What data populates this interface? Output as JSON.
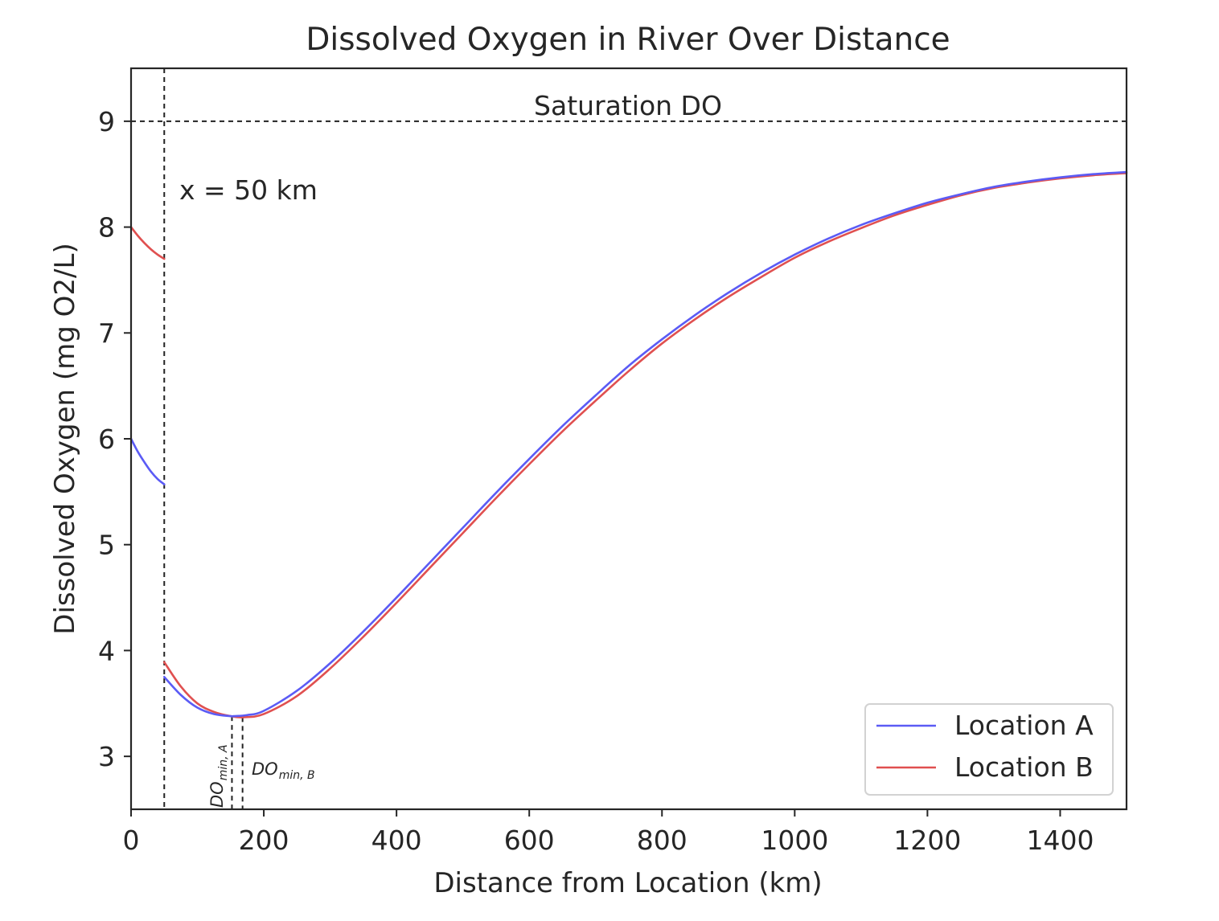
{
  "chart_data": {
    "type": "line",
    "title": "Dissolved Oxygen in River Over Distance",
    "xlabel": "Distance from Location (km)",
    "ylabel": "Dissolved Oxygen (mg O2/L)",
    "xlim": [
      0,
      1500
    ],
    "ylim": [
      2.5,
      9.5
    ],
    "xticks": [
      0,
      200,
      400,
      600,
      800,
      1000,
      1200,
      1400
    ],
    "yticks": [
      3,
      4,
      5,
      6,
      7,
      8,
      9
    ],
    "grid": false,
    "legend_position": "lower-right",
    "series": [
      {
        "name": "Location A",
        "color": "#5b5bf5",
        "segments": [
          {
            "x": [
              0,
              10,
              20,
              30,
              40,
              50
            ],
            "y": [
              6.0,
              5.88,
              5.78,
              5.69,
              5.62,
              5.57
            ]
          },
          {
            "x": [
              50,
              75,
              100,
              125,
              150,
              155,
              175,
              200,
              250,
              300,
              350,
              400,
              450,
              500,
              550,
              600,
              650,
              700,
              750,
              800,
              850,
              900,
              950,
              1000,
              1050,
              1100,
              1150,
              1200,
              1250,
              1300,
              1350,
              1400,
              1450,
              1500
            ],
            "y": [
              3.75,
              3.58,
              3.46,
              3.4,
              3.38,
              3.38,
              3.39,
              3.43,
              3.62,
              3.88,
              4.18,
              4.5,
              4.83,
              5.16,
              5.49,
              5.81,
              6.12,
              6.41,
              6.69,
              6.94,
              7.17,
              7.38,
              7.57,
              7.74,
              7.89,
              8.02,
              8.13,
              8.23,
              8.31,
              8.38,
              8.43,
              8.47,
              8.5,
              8.52
            ]
          }
        ]
      },
      {
        "name": "Location B",
        "color": "#e05050",
        "segments": [
          {
            "x": [
              0,
              10,
              20,
              30,
              40,
              50
            ],
            "y": [
              8.0,
              7.92,
              7.85,
              7.79,
              7.74,
              7.7
            ]
          },
          {
            "x": [
              50,
              75,
              100,
              125,
              150,
              170,
              200,
              250,
              300,
              350,
              400,
              450,
              500,
              550,
              600,
              650,
              700,
              750,
              800,
              850,
              900,
              950,
              1000,
              1050,
              1100,
              1150,
              1200,
              1250,
              1300,
              1350,
              1400,
              1450,
              1500
            ],
            "y": [
              3.89,
              3.66,
              3.5,
              3.42,
              3.38,
              3.37,
              3.4,
              3.57,
              3.83,
              4.13,
              4.45,
              4.78,
              5.11,
              5.44,
              5.76,
              6.07,
              6.36,
              6.64,
              6.9,
              7.13,
              7.34,
              7.53,
              7.71,
              7.86,
              7.99,
              8.11,
              8.21,
              8.3,
              8.37,
              8.42,
              8.46,
              8.49,
              8.51
            ]
          }
        ]
      }
    ],
    "annotations": {
      "saturation": {
        "y": 9,
        "label": "Saturation DO"
      },
      "discharge": {
        "x": 50,
        "label": "x = 50 km"
      },
      "do_min_a": {
        "x": 152,
        "label": "DO",
        "sub": "min, A"
      },
      "do_min_b": {
        "x": 168,
        "label": "DO",
        "sub": "min, B"
      }
    }
  }
}
